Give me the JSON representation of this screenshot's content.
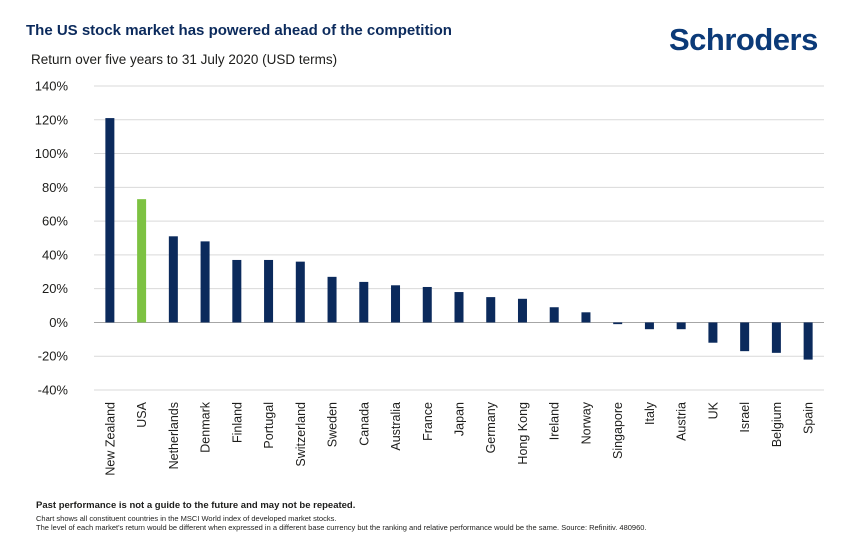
{
  "brand": {
    "logo_text": "Schroders",
    "color": "#0b3a78"
  },
  "chart_data": {
    "type": "bar",
    "title": "The US stock market has powered ahead of the competition",
    "subtitle": "Return over five years to 31 July 2020 (USD terms)",
    "categories": [
      "New Zealand",
      "USA",
      "Netherlands",
      "Denmark",
      "Finland",
      "Portugal",
      "Switzerland",
      "Sweden",
      "Canada",
      "Australia",
      "France",
      "Japan",
      "Germany",
      "Hong Kong",
      "Ireland",
      "Norway",
      "Singapore",
      "Italy",
      "Austria",
      "UK",
      "Israel",
      "Belgium",
      "Spain"
    ],
    "values": [
      121,
      73,
      51,
      48,
      37,
      37,
      36,
      27,
      24,
      22,
      21,
      18,
      15,
      14,
      9,
      6,
      -1,
      -4,
      -4,
      -12,
      -17,
      -18,
      -22
    ],
    "highlight_category": "USA",
    "ylim": [
      -40,
      140
    ],
    "yticks": [
      -40,
      -20,
      0,
      20,
      40,
      60,
      80,
      100,
      120,
      140
    ],
    "ytick_suffix": "%",
    "grid": true,
    "colors": {
      "bar": "#0b2a5c",
      "highlight": "#7dc242",
      "grid": "#d9d9d9",
      "zero_line": "#a6a6a6"
    }
  },
  "footnotes": {
    "disclaimer": "Past performance is not a guide to the future and may not be repeated.",
    "note1": "Chart shows all constituent countries in the MSCI World index of developed market stocks.",
    "note2": "The level of each market's return would be different when expressed in a different base currency but the ranking and relative performance would be the same. Source: Refinitiv. 480960."
  }
}
